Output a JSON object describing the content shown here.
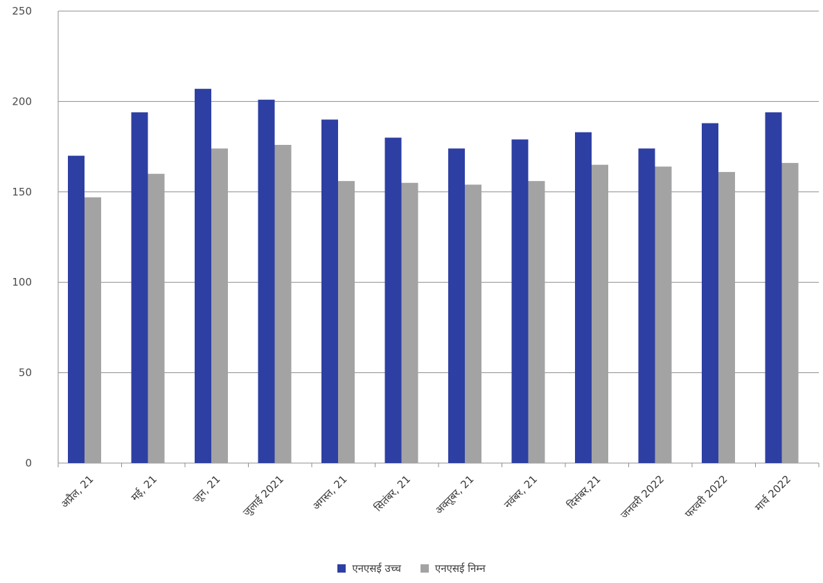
{
  "chart_data": {
    "type": "bar",
    "title": "",
    "xlabel": "",
    "ylabel": "",
    "ylim": [
      0,
      250
    ],
    "yticks": [
      0,
      50,
      100,
      150,
      200,
      250
    ],
    "grid": true,
    "legend_position": "bottom",
    "categories": [
      "अप्रैल, 21",
      "मई, 21",
      "जून, 21",
      "जुलाई 2021",
      "अगस्त, 21",
      "सितंबर, 21",
      "अक्तूबर, 21",
      "नवंबर, 21",
      "दिसंबर,21",
      "जनवरी 2022",
      "फरवरी 2022",
      "मार्च 2022"
    ],
    "series": [
      {
        "name": "एनएसई उच्च",
        "color": "#2e3fa3",
        "values": [
          170,
          194,
          207,
          201,
          190,
          180,
          174,
          179,
          183,
          174,
          188,
          194
        ]
      },
      {
        "name": "एनएसई निम्न",
        "color": "#a3a3a3",
        "values": [
          147,
          160,
          174,
          176,
          156,
          155,
          154,
          156,
          165,
          164,
          161,
          166
        ]
      }
    ]
  }
}
